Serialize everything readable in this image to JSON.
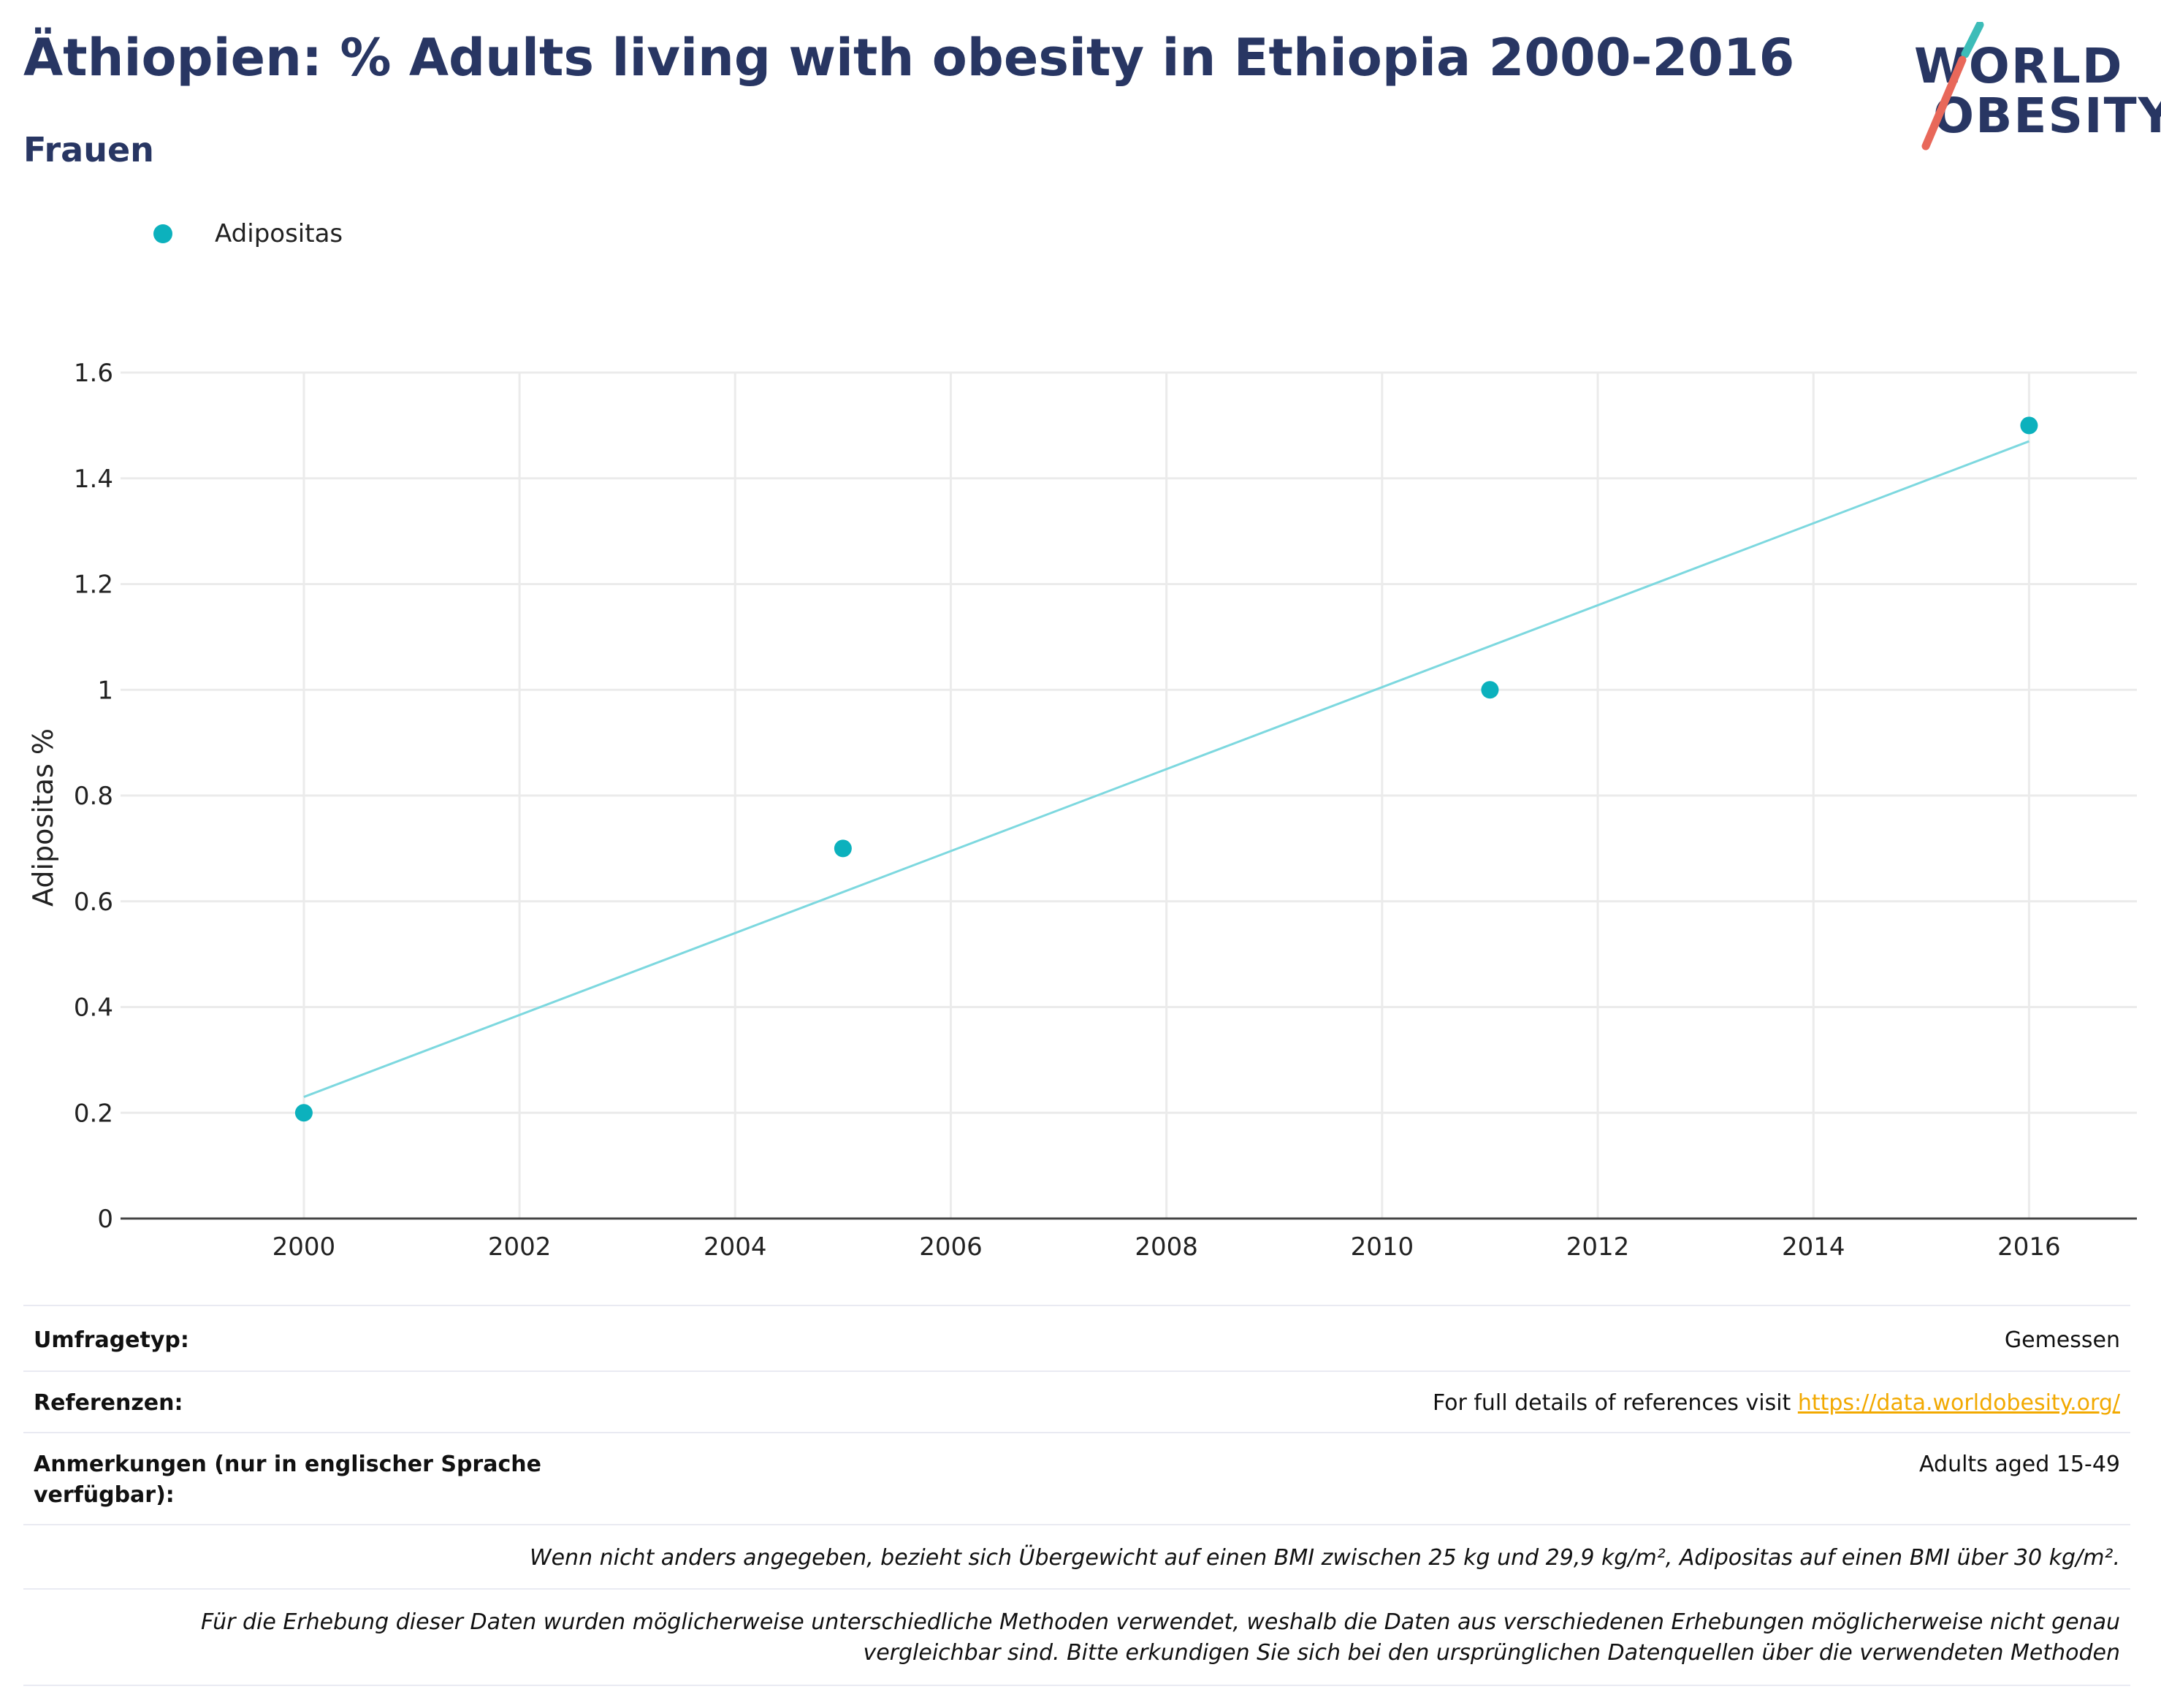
{
  "header": {
    "title": "Äthiopien: % Adults living with obesity in Ethiopia 2000-2016",
    "subtitle": "Frauen"
  },
  "logo": {
    "line1": "WORLD",
    "line2": "OBESITY",
    "colors": {
      "text": "#283663",
      "slash_top": "#3dbcb8",
      "slash_bottom": "#e8685a"
    }
  },
  "legend": {
    "label": "Adipositas",
    "color": "#0cb1bd"
  },
  "chart_data": {
    "type": "scatter",
    "ylabel": "Adipositas %",
    "xlabel": "",
    "xlim": [
      1998.3,
      2017.0
    ],
    "ylim": [
      0,
      1.6
    ],
    "x_ticks": [
      2000,
      2002,
      2004,
      2006,
      2008,
      2010,
      2012,
      2014,
      2016
    ],
    "y_ticks": [
      0,
      0.2,
      0.4,
      0.6,
      0.8,
      1,
      1.2,
      1.4,
      1.6
    ],
    "y_tick_labels": [
      "0",
      "0.2",
      "0.4",
      "0.6",
      "0.8",
      "1",
      "1.2",
      "1.4",
      "1.6"
    ],
    "grid": true,
    "series": [
      {
        "name": "Adipositas",
        "color": "#0cb1bd",
        "points": [
          {
            "x": 2000,
            "y": 0.2
          },
          {
            "x": 2005,
            "y": 0.7
          },
          {
            "x": 2011,
            "y": 1.0
          },
          {
            "x": 2016,
            "y": 1.5
          }
        ]
      }
    ],
    "trendline": {
      "color": "#7dd8df",
      "points": [
        {
          "x": 2000,
          "y": 0.23
        },
        {
          "x": 2016,
          "y": 1.47
        }
      ]
    }
  },
  "footer": {
    "survey_type_label": "Umfragetyp:",
    "survey_type_value": "Gemessen",
    "references_label": "Referenzen:",
    "references_text": "For full details of references visit",
    "references_link": "https://data.worldobesity.org/",
    "notes_label": "Anmerkungen (nur in englischer Sprache verfügbar):",
    "notes_value": "Adults aged 15-49",
    "bmi_note": "Wenn nicht anders angegeben, bezieht sich Übergewicht auf einen BMI zwischen 25 kg und 29,9 kg/m², Adipositas auf einen BMI über 30 kg/m².",
    "method_note": "Für die Erhebung dieser Daten wurden möglicherweise unterschiedliche Methoden verwendet, weshalb die Daten aus verschiedenen Erhebungen möglicherweise nicht genau vergleichbar sind. Bitte erkundigen Sie sich bei den ursprünglichen Datenquellen über die verwendeten Methoden"
  }
}
